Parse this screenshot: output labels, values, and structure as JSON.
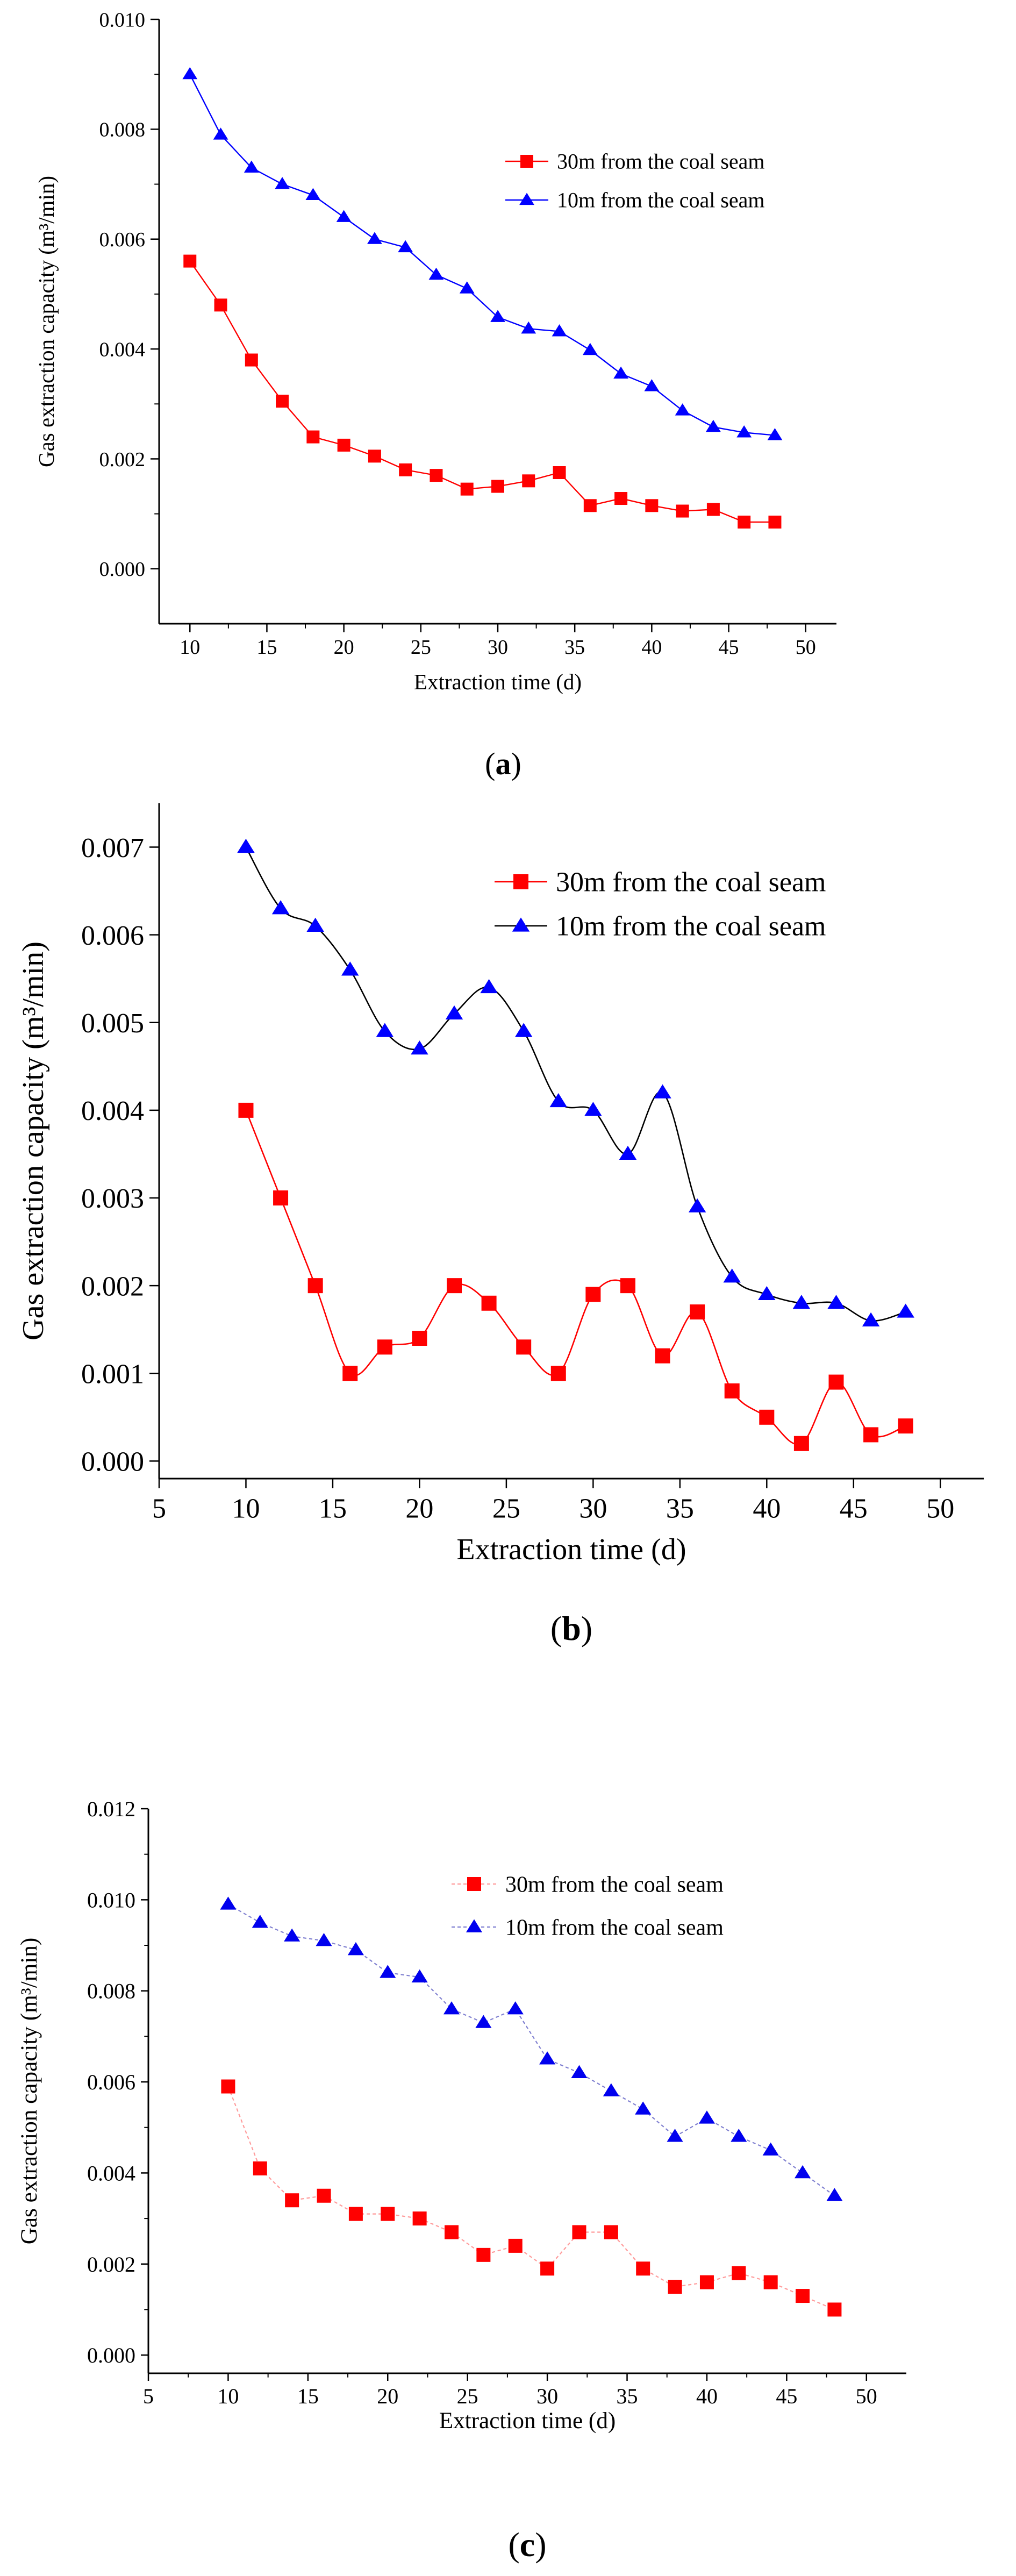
{
  "chart_data": [
    {
      "id": "a",
      "type": "line",
      "caption": "a",
      "xlabel": "Extraction time (d)",
      "ylabel": "Gas extraction capacity (m³/min)",
      "xlim": [
        8,
        52
      ],
      "ylim": [
        -0.001,
        0.01
      ],
      "xticks": [
        10,
        15,
        20,
        25,
        30,
        35,
        40,
        45,
        50
      ],
      "yticks": [
        0.0,
        0.002,
        0.004,
        0.006,
        0.008,
        0.01
      ],
      "ytick_labels": [
        "0.000",
        "0.002",
        "0.004",
        "0.006",
        "0.008",
        "0.010"
      ],
      "legend_position": "top-right",
      "x": [
        10,
        12,
        14,
        16,
        18,
        20,
        22,
        24,
        26,
        28,
        30,
        32,
        34,
        36,
        38,
        40,
        42,
        44,
        46,
        48
      ],
      "series": [
        {
          "name": "30m from the coal seam",
          "marker": "square",
          "color": "#ff0000",
          "line_color": "#ff0000",
          "values": [
            0.0056,
            0.0048,
            0.0038,
            0.00305,
            0.0024,
            0.00225,
            0.00205,
            0.0018,
            0.0017,
            0.00145,
            0.0015,
            0.0016,
            0.00175,
            0.00115,
            0.00128,
            0.00115,
            0.00105,
            0.00108,
            0.00085,
            0.00085
          ]
        },
        {
          "name": "10m from the coal seam",
          "marker": "triangle",
          "color": "#0000ff",
          "line_color": "#0000ff",
          "values": [
            0.009,
            0.0079,
            0.0073,
            0.007,
            0.0068,
            0.0064,
            0.006,
            0.00585,
            0.00535,
            0.0051,
            0.00458,
            0.00437,
            0.00432,
            0.00398,
            0.00355,
            0.00332,
            0.00288,
            0.00258,
            0.00248,
            0.00243
          ]
        }
      ]
    },
    {
      "id": "b",
      "type": "line",
      "caption": "b",
      "xlabel": "Extraction time (d)",
      "ylabel": "Gas extraction capacity (m³/min)",
      "xlim": [
        5,
        52.5
      ],
      "ylim": [
        -0.0002,
        0.0075
      ],
      "xticks": [
        5,
        10,
        15,
        20,
        25,
        30,
        35,
        40,
        45,
        50
      ],
      "yticks": [
        0.0,
        0.001,
        0.002,
        0.003,
        0.004,
        0.005,
        0.006,
        0.007
      ],
      "ytick_labels": [
        "0.000",
        "0.001",
        "0.002",
        "0.003",
        "0.004",
        "0.005",
        "0.006",
        "0.007"
      ],
      "legend_position": "top-right",
      "x": [
        10,
        12,
        14,
        16,
        18,
        20,
        22,
        24,
        26,
        28,
        30,
        32,
        34,
        36,
        38,
        40,
        42,
        44,
        46,
        48
      ],
      "series": [
        {
          "name": "30m from the coal seam",
          "marker": "square",
          "color": "#ff0000",
          "line_color": "#ff0000",
          "values": [
            0.004,
            0.003,
            0.002,
            0.001,
            0.0013,
            0.0014,
            0.002,
            0.0018,
            0.0013,
            0.001,
            0.0019,
            0.002,
            0.0012,
            0.0017,
            0.0008,
            0.0005,
            0.0002,
            0.0009,
            0.0003,
            0.0004
          ]
        },
        {
          "name": "10m from the coal seam",
          "marker": "triangle",
          "color": "#0000ff",
          "line_color": "#000000",
          "values": [
            0.007,
            0.0063,
            0.0061,
            0.0056,
            0.0049,
            0.0047,
            0.0051,
            0.0054,
            0.0049,
            0.0041,
            0.004,
            0.0035,
            0.0042,
            0.0029,
            0.0021,
            0.0019,
            0.0018,
            0.0018,
            0.0016,
            0.0017
          ]
        }
      ]
    },
    {
      "id": "c",
      "type": "line",
      "caption": "c",
      "xlabel": "Extraction time (d)",
      "ylabel": "Gas extraction capacity (m³/min)",
      "xlim": [
        5,
        52.5
      ],
      "ylim": [
        -0.0004,
        0.012
      ],
      "xticks": [
        5,
        10,
        15,
        20,
        25,
        30,
        35,
        40,
        45,
        50
      ],
      "yticks": [
        0.0,
        0.002,
        0.004,
        0.006,
        0.008,
        0.01,
        0.012
      ],
      "ytick_labels": [
        "0.000",
        "0.002",
        "0.004",
        "0.006",
        "0.008",
        "0.010",
        "0.012"
      ],
      "legend_position": "top-right",
      "x": [
        10,
        12,
        14,
        16,
        18,
        20,
        22,
        24,
        26,
        28,
        30,
        32,
        34,
        36,
        38,
        40,
        42,
        44,
        46,
        48
      ],
      "series": [
        {
          "name": "30m from the coal seam",
          "marker": "square",
          "color": "#ff0000",
          "line_color": "#ff9a9a",
          "values": [
            0.0059,
            0.0041,
            0.0034,
            0.0035,
            0.0031,
            0.0031,
            0.003,
            0.0027,
            0.0022,
            0.0024,
            0.0019,
            0.0027,
            0.0027,
            0.0019,
            0.0015,
            0.0016,
            0.0018,
            0.0016,
            0.0013,
            0.001
          ]
        },
        {
          "name": "10m from the coal seam",
          "marker": "triangle",
          "color": "#0000ee",
          "line_color": "#8080d0",
          "values": [
            0.0099,
            0.0095,
            0.0092,
            0.0091,
            0.0089,
            0.0084,
            0.0083,
            0.0076,
            0.0073,
            0.0076,
            0.0065,
            0.0062,
            0.0058,
            0.0054,
            0.0048,
            0.0052,
            0.0048,
            0.0045,
            0.004,
            0.0035
          ]
        }
      ]
    }
  ]
}
